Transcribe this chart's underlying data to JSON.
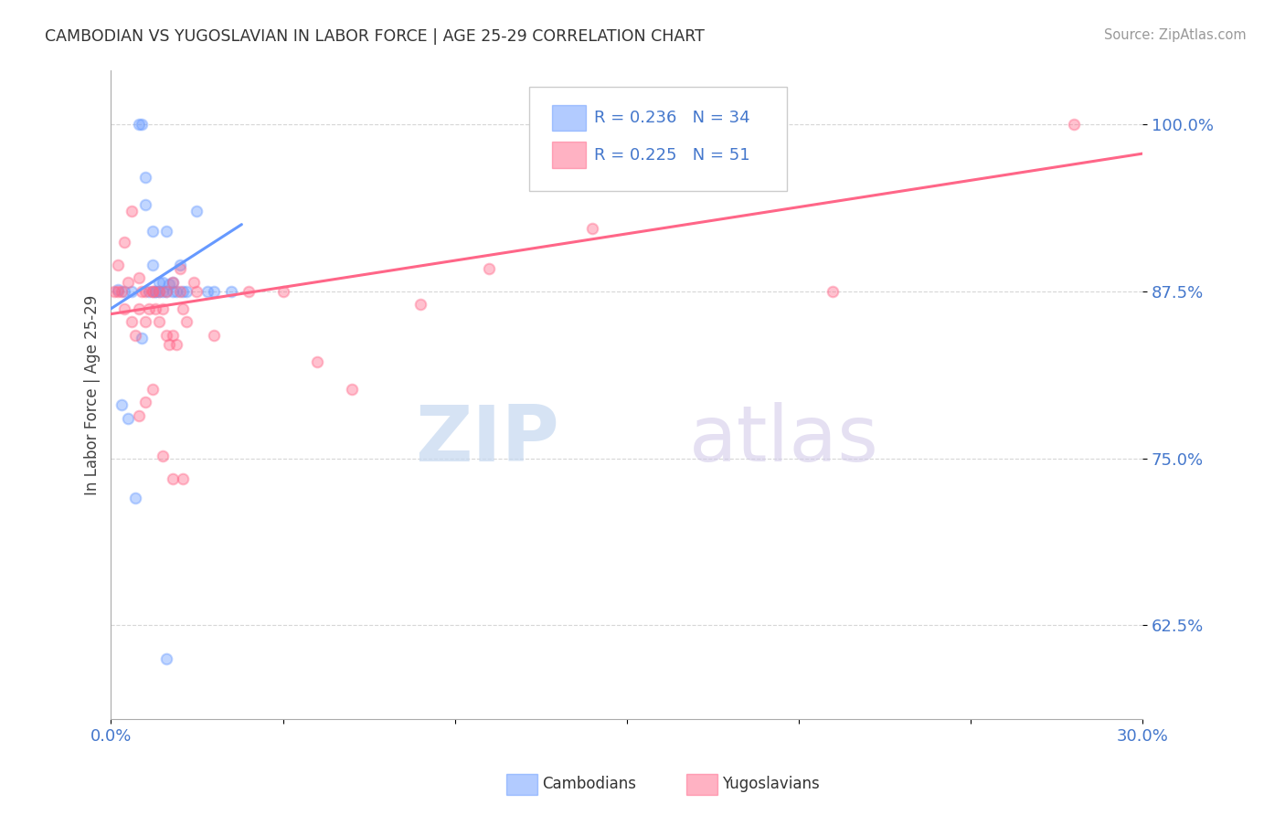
{
  "title": "CAMBODIAN VS YUGOSLAVIAN IN LABOR FORCE | AGE 25-29 CORRELATION CHART",
  "source": "Source: ZipAtlas.com",
  "ylabel": "In Labor Force | Age 25-29",
  "xlim": [
    0.0,
    0.3
  ],
  "ylim": [
    0.555,
    1.04
  ],
  "xticks": [
    0.0,
    0.05,
    0.1,
    0.15,
    0.2,
    0.25,
    0.3
  ],
  "xticklabels": [
    "0.0%",
    "",
    "",
    "",
    "",
    "",
    "30.0%"
  ],
  "yticks": [
    0.625,
    0.75,
    0.875,
    1.0
  ],
  "yticklabels": [
    "62.5%",
    "75.0%",
    "87.5%",
    "100.0%"
  ],
  "cambodian_color": "#6699ff",
  "yugoslavian_color": "#ff6688",
  "cambodian_R": 0.236,
  "cambodian_N": 34,
  "yugoslavian_R": 0.225,
  "yugoslavian_N": 51,
  "legend_label_cambodian": "Cambodians",
  "legend_label_yugoslavian": "Yugoslavians",
  "watermark_zip": "ZIP",
  "watermark_atlas": "atlas",
  "cambodian_scatter_x": [
    0.002,
    0.004,
    0.006,
    0.008,
    0.009,
    0.01,
    0.01,
    0.011,
    0.012,
    0.012,
    0.013,
    0.014,
    0.014,
    0.015,
    0.015,
    0.016,
    0.016,
    0.017,
    0.018,
    0.018,
    0.019,
    0.02,
    0.021,
    0.022,
    0.025,
    0.028,
    0.03,
    0.035,
    0.003,
    0.005,
    0.007,
    0.009,
    0.013,
    0.016
  ],
  "cambodian_scatter_y": [
    0.876,
    0.875,
    0.875,
    1.0,
    1.0,
    0.96,
    0.94,
    0.875,
    0.92,
    0.895,
    0.875,
    0.875,
    0.882,
    0.875,
    0.882,
    0.92,
    0.875,
    0.88,
    0.875,
    0.882,
    0.875,
    0.895,
    0.875,
    0.875,
    0.935,
    0.875,
    0.875,
    0.875,
    0.79,
    0.78,
    0.72,
    0.84,
    0.875,
    0.6
  ],
  "yugoslavian_scatter_x": [
    0.001,
    0.002,
    0.003,
    0.004,
    0.005,
    0.006,
    0.007,
    0.008,
    0.009,
    0.01,
    0.011,
    0.012,
    0.013,
    0.014,
    0.015,
    0.016,
    0.017,
    0.018,
    0.019,
    0.02,
    0.021,
    0.022,
    0.024,
    0.025,
    0.03,
    0.04,
    0.05,
    0.06,
    0.07,
    0.09,
    0.11,
    0.14,
    0.18,
    0.21,
    0.28,
    0.002,
    0.004,
    0.006,
    0.008,
    0.01,
    0.012,
    0.015,
    0.018,
    0.021,
    0.008,
    0.01,
    0.012,
    0.014,
    0.016,
    0.018,
    0.02
  ],
  "yugoslavian_scatter_y": [
    0.875,
    0.875,
    0.875,
    0.862,
    0.882,
    0.852,
    0.842,
    0.862,
    0.875,
    0.852,
    0.862,
    0.875,
    0.862,
    0.852,
    0.862,
    0.842,
    0.835,
    0.842,
    0.835,
    0.875,
    0.862,
    0.852,
    0.882,
    0.875,
    0.842,
    0.875,
    0.875,
    0.822,
    0.802,
    0.865,
    0.892,
    0.922,
    0.972,
    0.875,
    1.0,
    0.895,
    0.912,
    0.935,
    0.782,
    0.792,
    0.802,
    0.752,
    0.735,
    0.735,
    0.885,
    0.875,
    0.875,
    0.875,
    0.875,
    0.882,
    0.892
  ],
  "cambodian_trend_x": [
    0.0,
    0.038
  ],
  "cambodian_trend_y": [
    0.862,
    0.925
  ],
  "yugoslavian_trend_x": [
    0.0,
    0.3
  ],
  "yugoslavian_trend_y": [
    0.858,
    0.978
  ],
  "title_color": "#333333",
  "source_color": "#999999",
  "axis_tick_color": "#4477cc",
  "grid_color": "#cccccc",
  "spine_color": "#aaaaaa",
  "marker_size": 70,
  "trend_linewidth": 2.2
}
